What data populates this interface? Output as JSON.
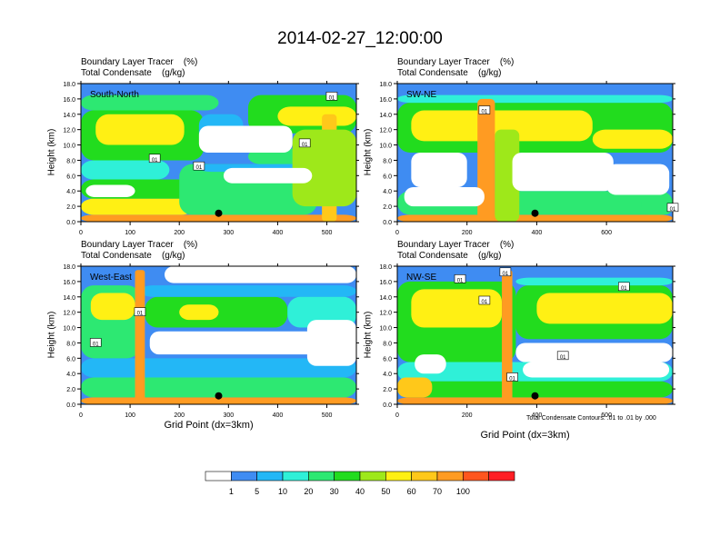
{
  "title": "2014-02-27_12:00:00",
  "panel_header": {
    "line1": "Boundary Layer Tracer    (%)",
    "line2": "Total Condensate    (g/kg)"
  },
  "y_axis_label": "Height (km)",
  "x_axis_label": "Grid Point (dx=3km)",
  "contour_note": "Total Condensate Contours: .01 to .01 by .000",
  "contour_label": "01",
  "colorbar": {
    "colors": [
      "#ffffff",
      "#3f8cf2",
      "#23b7f6",
      "#2ff0d8",
      "#2de872",
      "#22dc1e",
      "#9ee81a",
      "#fff014",
      "#ffc81a",
      "#ff9b22",
      "#ff561e",
      "#ff1e24"
    ],
    "labels": [
      "1",
      "5",
      "10",
      "20",
      "30",
      "40",
      "50",
      "60",
      "70",
      "100"
    ]
  },
  "chart_data": [
    {
      "type": "heatmap",
      "panel_label": "South-North",
      "xlabel": "",
      "ylabel": "Height (km)",
      "xlim": [
        0,
        560
      ],
      "ylim": [
        0,
        18
      ],
      "x_ticks": [
        0,
        100,
        200,
        300,
        400,
        500
      ],
      "y_ticks": [
        "0.0",
        "2.0",
        "4.0",
        "6.0",
        "8.0",
        "10.0",
        "12.0",
        "14.0",
        "16.0",
        "18.0"
      ],
      "marker": {
        "x": 280,
        "y": 1.1
      },
      "contour_labels": [
        {
          "x": 510,
          "y": 16.3
        },
        {
          "x": 455,
          "y": 10.2
        },
        {
          "x": 150,
          "y": 8.2
        },
        {
          "x": 240,
          "y": 7.2
        }
      ],
      "bands": [
        {
          "value": 80,
          "x0": 0,
          "x1": 560,
          "y0": 0,
          "y1": 0.9
        },
        {
          "value": 55,
          "x0": 0,
          "x1": 230,
          "y0": 0.9,
          "y1": 3.0
        },
        {
          "value": 35,
          "x0": 0,
          "x1": 330,
          "y0": 3.0,
          "y1": 5.5
        },
        {
          "value": 25,
          "x0": 200,
          "x1": 480,
          "y0": 0.9,
          "y1": 7.5
        },
        {
          "value": 12,
          "x0": 0,
          "x1": 180,
          "y0": 5.5,
          "y1": 8.0
        },
        {
          "value": 35,
          "x0": 0,
          "x1": 250,
          "y0": 8.0,
          "y1": 14.5
        },
        {
          "value": 55,
          "x0": 30,
          "x1": 210,
          "y0": 10.0,
          "y1": 14.0
        },
        {
          "value": 20,
          "x0": 0,
          "x1": 280,
          "y0": 14.5,
          "y1": 16.5
        },
        {
          "value": 30,
          "x0": 340,
          "x1": 560,
          "y0": 11.5,
          "y1": 16.5
        },
        {
          "value": 55,
          "x0": 400,
          "x1": 560,
          "y0": 12.5,
          "y1": 15.0
        },
        {
          "value": 8,
          "x0": 240,
          "x1": 330,
          "y0": 10.0,
          "y1": 14.0
        },
        {
          "value": 25,
          "x0": 340,
          "x1": 520,
          "y0": 7.5,
          "y1": 9.5
        },
        {
          "value": 8,
          "x0": 240,
          "x1": 460,
          "y0": 6.5,
          "y1": 7.5
        },
        {
          "value": 60,
          "x0": 490,
          "x1": 520,
          "y0": 0,
          "y1": 14.0
        },
        {
          "value": 40,
          "x0": 430,
          "x1": 560,
          "y0": 2.0,
          "y1": 12.0
        }
      ],
      "whites": [
        {
          "x0": 240,
          "x1": 430,
          "y0": 9.0,
          "y1": 12.5
        },
        {
          "x0": 290,
          "x1": 470,
          "y0": 5.0,
          "y1": 7.0
        },
        {
          "x0": 10,
          "x1": 110,
          "y0": 3.2,
          "y1": 4.8
        }
      ]
    },
    {
      "type": "heatmap",
      "panel_label": "SW-NE",
      "xlabel": "",
      "ylabel": "Height (km)",
      "xlim": [
        0,
        790
      ],
      "ylim": [
        0,
        18
      ],
      "x_ticks": [
        0,
        200,
        400,
        600
      ],
      "y_ticks": [
        "0.0",
        "2.0",
        "4.0",
        "6.0",
        "8.0",
        "10.0",
        "12.0",
        "14.0",
        "16.0",
        "18.0"
      ],
      "marker": {
        "x": 395,
        "y": 1.1
      },
      "contour_labels": [
        {
          "x": 250,
          "y": 14.5
        },
        {
          "x": 790,
          "y": 1.8
        }
      ],
      "bands": [
        {
          "value": 80,
          "x0": 0,
          "x1": 790,
          "y0": 0,
          "y1": 0.9
        },
        {
          "value": 25,
          "x0": 0,
          "x1": 790,
          "y0": 0.9,
          "y1": 4.0
        },
        {
          "value": 30,
          "x0": 0,
          "x1": 790,
          "y0": 9.0,
          "y1": 15.5
        },
        {
          "value": 55,
          "x0": 40,
          "x1": 560,
          "y0": 10.5,
          "y1": 14.5
        },
        {
          "value": 55,
          "x0": 560,
          "x1": 790,
          "y0": 9.5,
          "y1": 12.0
        },
        {
          "value": 15,
          "x0": 0,
          "x1": 790,
          "y0": 15.5,
          "y1": 16.5
        },
        {
          "value": 70,
          "x0": 230,
          "x1": 280,
          "y0": 0,
          "y1": 16.0
        },
        {
          "value": 40,
          "x0": 280,
          "x1": 350,
          "y0": 0,
          "y1": 12.0
        },
        {
          "value": 25,
          "x0": 700,
          "x1": 790,
          "y0": 0.9,
          "y1": 3.5
        }
      ],
      "whites": [
        {
          "x0": 40,
          "x1": 200,
          "y0": 4.5,
          "y1": 9.0
        },
        {
          "x0": 330,
          "x1": 620,
          "y0": 4.0,
          "y1": 9.0
        },
        {
          "x0": 600,
          "x1": 780,
          "y0": 3.5,
          "y1": 7.5
        },
        {
          "x0": 20,
          "x1": 250,
          "y0": 2.0,
          "y1": 4.5
        }
      ]
    },
    {
      "type": "heatmap",
      "panel_label": "West-East",
      "xlabel": "Grid Point (dx=3km)",
      "ylabel": "Height (km)",
      "xlim": [
        0,
        560
      ],
      "ylim": [
        0,
        18
      ],
      "x_ticks": [
        0,
        100,
        200,
        300,
        400,
        500
      ],
      "y_ticks": [
        "0.0",
        "2.0",
        "4.0",
        "6.0",
        "8.0",
        "10.0",
        "12.0",
        "14.0",
        "16.0",
        "18.0"
      ],
      "marker": {
        "x": 280,
        "y": 1.1
      },
      "contour_labels": [
        {
          "x": 120,
          "y": 12.0
        },
        {
          "x": 30,
          "y": 8.0
        }
      ],
      "bands": [
        {
          "value": 80,
          "x0": 0,
          "x1": 560,
          "y0": 0,
          "y1": 0.9
        },
        {
          "value": 25,
          "x0": 0,
          "x1": 560,
          "y0": 0.9,
          "y1": 3.5
        },
        {
          "value": 8,
          "x0": 0,
          "x1": 560,
          "y0": 3.5,
          "y1": 6.0
        },
        {
          "value": 25,
          "x0": 0,
          "x1": 120,
          "y0": 6.0,
          "y1": 15.5
        },
        {
          "value": 55,
          "x0": 20,
          "x1": 110,
          "y0": 11.0,
          "y1": 14.5
        },
        {
          "value": 30,
          "x0": 130,
          "x1": 420,
          "y0": 10.0,
          "y1": 14.0
        },
        {
          "value": 55,
          "x0": 200,
          "x1": 280,
          "y0": 11.0,
          "y1": 13.0
        },
        {
          "value": 8,
          "x0": 120,
          "x1": 560,
          "y0": 14.0,
          "y1": 15.5
        },
        {
          "value": 12,
          "x0": 420,
          "x1": 560,
          "y0": 10.0,
          "y1": 14.0
        },
        {
          "value": 70,
          "x0": 110,
          "x1": 130,
          "y0": 0,
          "y1": 17.5
        }
      ],
      "whites": [
        {
          "x0": 140,
          "x1": 560,
          "y0": 6.5,
          "y1": 9.5
        },
        {
          "x0": 460,
          "x1": 560,
          "y0": 5.0,
          "y1": 11.0
        },
        {
          "x0": 170,
          "x1": 560,
          "y0": 15.8,
          "y1": 18.0
        }
      ]
    },
    {
      "type": "heatmap",
      "panel_label": "NW-SE",
      "xlabel": "Grid Point (dx=3km)",
      "ylabel": "Height (km)",
      "xlim": [
        0,
        790
      ],
      "ylim": [
        0,
        18
      ],
      "x_ticks": [
        0,
        200,
        400,
        600
      ],
      "y_ticks": [
        "0.0",
        "2.0",
        "4.0",
        "6.0",
        "8.0",
        "10.0",
        "12.0",
        "14.0",
        "16.0",
        "18.0"
      ],
      "marker": {
        "x": 395,
        "y": 1.1
      },
      "contour_labels": [
        {
          "x": 180,
          "y": 16.3
        },
        {
          "x": 310,
          "y": 17.2
        },
        {
          "x": 250,
          "y": 13.5
        },
        {
          "x": 650,
          "y": 15.3
        },
        {
          "x": 475,
          "y": 6.3
        },
        {
          "x": 330,
          "y": 3.5
        }
      ],
      "bands": [
        {
          "value": 80,
          "x0": 0,
          "x1": 790,
          "y0": 0,
          "y1": 0.9
        },
        {
          "value": 30,
          "x0": 0,
          "x1": 790,
          "y0": 0.9,
          "y1": 3.0
        },
        {
          "value": 12,
          "x0": 0,
          "x1": 790,
          "y0": 3.0,
          "y1": 5.5
        },
        {
          "value": 35,
          "x0": 0,
          "x1": 340,
          "y0": 5.5,
          "y1": 16.0
        },
        {
          "value": 55,
          "x0": 40,
          "x1": 300,
          "y0": 10.0,
          "y1": 15.0
        },
        {
          "value": 30,
          "x0": 340,
          "x1": 790,
          "y0": 8.5,
          "y1": 15.5
        },
        {
          "value": 55,
          "x0": 400,
          "x1": 790,
          "y0": 10.5,
          "y1": 14.5
        },
        {
          "value": 15,
          "x0": 340,
          "x1": 790,
          "y0": 15.5,
          "y1": 16.5
        },
        {
          "value": 70,
          "x0": 300,
          "x1": 330,
          "y0": 0,
          "y1": 17.5
        },
        {
          "value": 60,
          "x0": 0,
          "x1": 100,
          "y0": 0.9,
          "y1": 3.5
        }
      ],
      "whites": [
        {
          "x0": 340,
          "x1": 790,
          "y0": 5.5,
          "y1": 8.0
        },
        {
          "x0": 360,
          "x1": 780,
          "y0": 3.5,
          "y1": 5.5
        },
        {
          "x0": 50,
          "x1": 140,
          "y0": 4.0,
          "y1": 6.5
        }
      ]
    }
  ]
}
